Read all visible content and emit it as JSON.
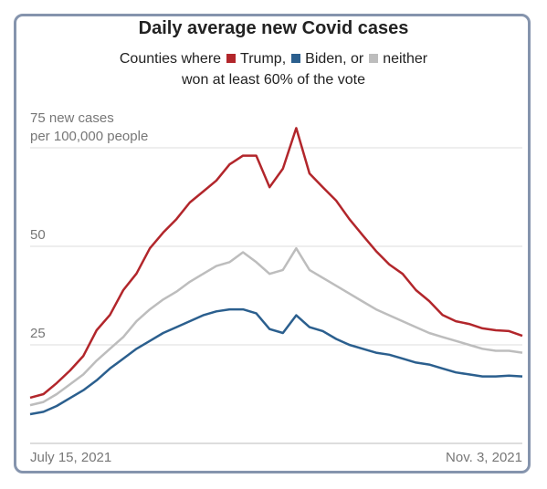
{
  "chart_data": {
    "type": "line",
    "title": "Daily average new Covid cases",
    "subtitle_lead": "Counties where",
    "legend_separators": [
      ",",
      ", or"
    ],
    "subtitle_end": "won at least 60% of the vote",
    "y_axis_label": "per 100,000 people",
    "categories": [
      "July 15, 2021",
      null,
      null,
      null,
      null,
      null,
      null,
      null,
      null,
      null,
      null,
      null,
      null,
      null,
      null,
      null,
      null,
      null,
      null,
      null,
      null,
      null,
      null,
      null,
      null,
      null,
      null,
      null,
      null,
      null,
      null,
      null,
      null,
      null,
      null,
      null,
      null,
      "Nov. 3, 2021"
    ],
    "series": [
      {
        "name": "Trump",
        "color": "#b2262b",
        "values": [
          11.6,
          12.5,
          15.3,
          18.5,
          22.2,
          28.7,
          32.6,
          38.9,
          43.1,
          49.5,
          53.5,
          56.9,
          61.1,
          63.9,
          66.7,
          70.8,
          73,
          73,
          65,
          69.7,
          80,
          68.5,
          65,
          61.6,
          56.9,
          52.8,
          48.8,
          45.4,
          43,
          38.9,
          36.1,
          32.6,
          31,
          30.3,
          29.2,
          28.7,
          28.5,
          27.3
        ]
      },
      {
        "name": "Biden",
        "color": "#2b5f8e",
        "values": [
          7.4,
          8,
          9.5,
          11.5,
          13.5,
          16,
          19,
          21.5,
          24,
          26,
          28,
          29.5,
          31,
          32.5,
          33.5,
          34,
          34,
          33,
          29,
          28,
          32.5,
          29.5,
          28.5,
          26.5,
          25,
          24,
          23,
          22.5,
          21.5,
          20.5,
          20,
          19,
          18,
          17.5,
          17,
          17,
          17.2,
          17
        ]
      },
      {
        "name": "neither",
        "color": "#bdbdbd",
        "values": [
          9.7,
          10.5,
          12.5,
          15,
          17.5,
          21,
          24,
          27,
          31,
          34,
          36.5,
          38.5,
          41,
          43,
          45,
          46,
          48.5,
          46,
          43,
          44,
          49.5,
          44,
          42,
          40,
          38,
          36,
          34,
          32.5,
          31,
          29.5,
          28,
          27,
          26,
          25,
          24,
          23.5,
          23.5,
          23
        ]
      }
    ],
    "ylim": [
      0,
      80
    ],
    "yticks": [
      25,
      50,
      {
        "value": 75,
        "label": "75 new cases"
      }
    ],
    "grid": true
  }
}
